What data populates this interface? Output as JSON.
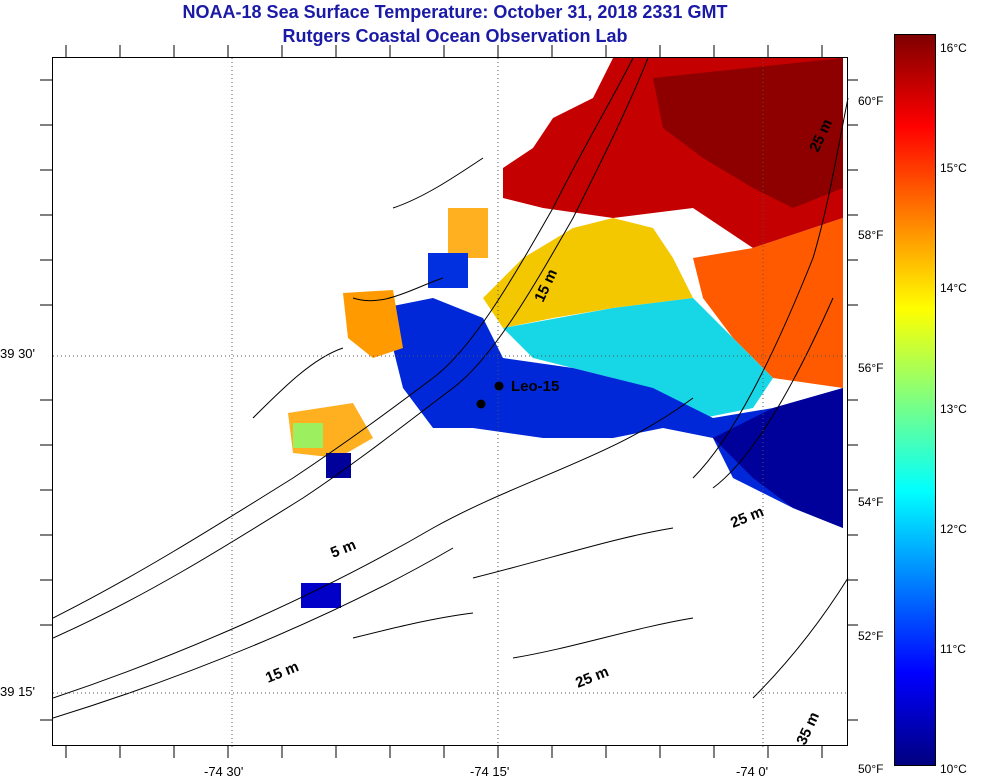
{
  "header": {
    "title_line1": "NOAA-18 Sea Surface Temperature:  October 31, 2018 2331 GMT",
    "title_line2": "Rutgers Coastal Ocean Observation Lab"
  },
  "map": {
    "lat_labels": [
      "39 30'",
      "39 15'"
    ],
    "lon_labels": [
      "-74 30'",
      "-74 15'",
      "-74 0'"
    ],
    "depth_labels": [
      "5 m",
      "15 m",
      "15 m",
      "25 m",
      "25 m",
      "25 m",
      "35 m"
    ],
    "station_label": "Leo-15"
  },
  "colorbar": {
    "celsius_labels": [
      "16°C",
      "15°C",
      "14°C",
      "13°C",
      "12°C",
      "11°C",
      "10°C"
    ],
    "fahrenheit_labels": [
      "60°F",
      "58°F",
      "56°F",
      "54°F",
      "52°F",
      "50°F"
    ],
    "celsius_range": [
      10,
      16
    ],
    "colors": [
      "#00007f",
      "#0000ff",
      "#007fff",
      "#00ffff",
      "#7fff7f",
      "#ffff00",
      "#ff7f00",
      "#ff0000",
      "#7f0000"
    ]
  }
}
